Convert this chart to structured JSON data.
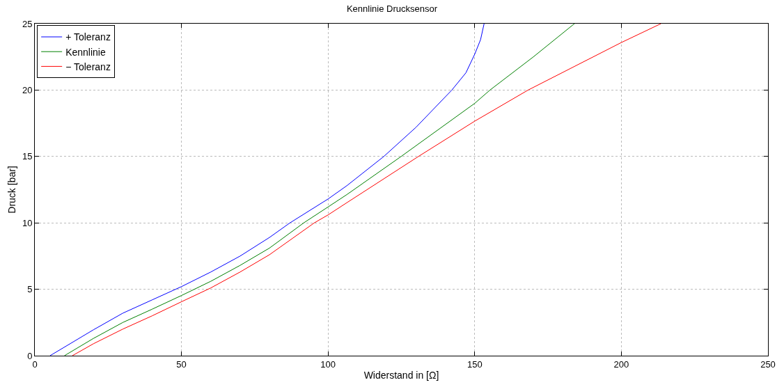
{
  "chart_data": {
    "type": "line",
    "title": "Kennlinie Drucksensor",
    "xlabel": "Widerstand in [Ω]",
    "ylabel": "Druck [bar]",
    "xlim": [
      0,
      250
    ],
    "xticks": [
      0,
      50,
      100,
      150,
      200,
      250
    ],
    "ylim": [
      0,
      25
    ],
    "yticks": [
      0,
      5,
      10,
      15,
      20,
      25
    ],
    "grid": true,
    "legend": "top left",
    "marker": "none",
    "line_style": "solid",
    "series": [
      {
        "name": "+ Toleranz",
        "color": "#0000ff",
        "x": [
          5.2,
          20,
          30,
          40,
          50,
          60,
          70,
          80,
          87,
          100,
          106.4,
          119,
          130,
          142.2,
          147,
          150,
          152,
          153.2
        ],
        "values": [
          0,
          1.95,
          3.2,
          4.2,
          5.2,
          6.3,
          7.5,
          8.9,
          10,
          11.8,
          12.8,
          15,
          17.2,
          20,
          21.3,
          22.7,
          23.8,
          25
        ]
      },
      {
        "name": "Kennlinie",
        "color": "#008000",
        "x": [
          10.1,
          20,
          30,
          40,
          50,
          60,
          70,
          80,
          91.7,
          100,
          106.4,
          124.9,
          150,
          155.2,
          170,
          184
        ],
        "values": [
          0,
          1.3,
          2.5,
          3.5,
          4.53,
          5.6,
          6.8,
          8.1,
          10,
          11.2,
          12.13,
          15,
          19,
          20,
          22.5,
          25
        ]
      },
      {
        "name": "− Toleranz",
        "color": "#ff0000",
        "x": [
          12.8,
          20,
          30,
          40,
          50,
          60,
          70,
          80,
          95.3,
          100,
          106.4,
          130.8,
          150,
          168.2,
          200,
          213.5
        ],
        "values": [
          0,
          0.9,
          2.0,
          3.0,
          4.06,
          5.1,
          6.3,
          7.6,
          10,
          10.6,
          11.52,
          15,
          17.66,
          20,
          23.58,
          25
        ]
      }
    ]
  }
}
